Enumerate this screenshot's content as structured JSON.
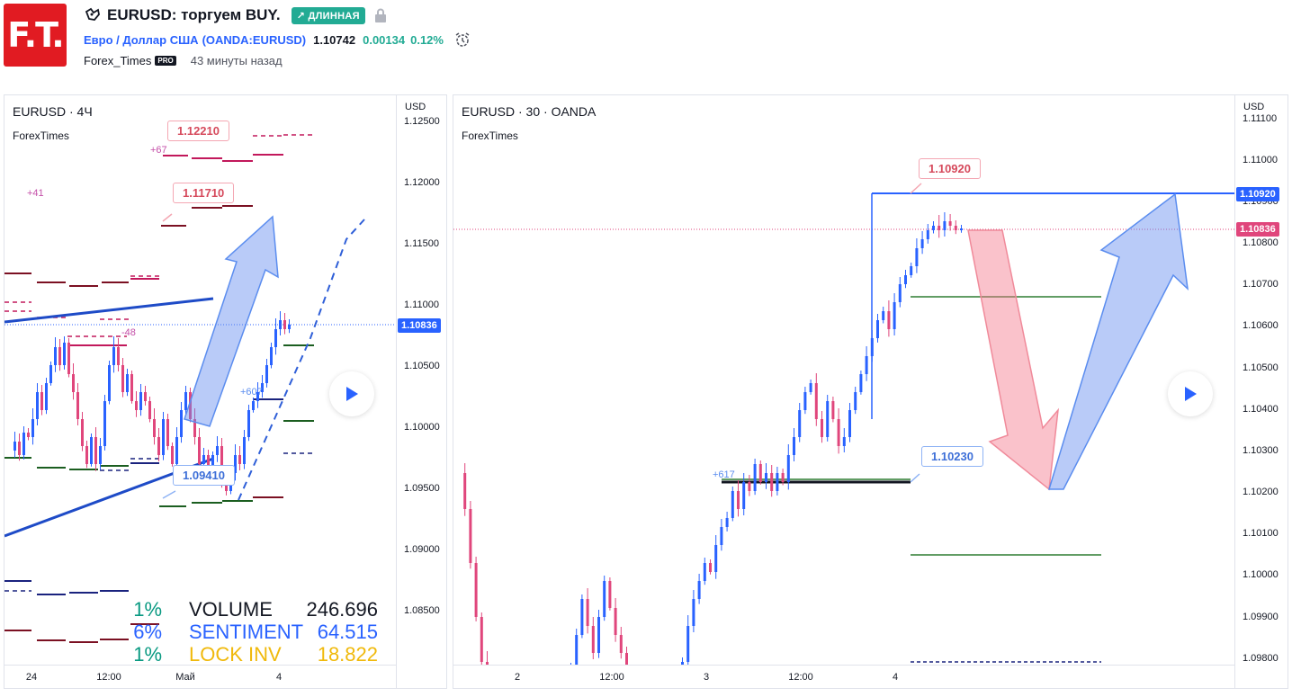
{
  "header": {
    "logo_text": "F.T.",
    "title": "EURUSD: торгуем BUY.",
    "badge": "↗ ДЛИННАЯ",
    "symbol_name": "Евро / Доллар США",
    "symbol_code": "(OANDA:EURUSD)",
    "price": "1.10742",
    "change": "0.00134",
    "change_pct": "0.12%",
    "author": "Forex_Times",
    "author_badge": "PRO",
    "time_ago": "43 минуты назад"
  },
  "left_chart": {
    "title": "EURUSD · 4Ч",
    "subtitle": "ForexTimes",
    "currency": "USD",
    "y_ticks": [
      "1.12500",
      "1.12000",
      "1.11500",
      "1.11000",
      "1.10500",
      "1.10000",
      "1.09500",
      "1.09000",
      "1.08500"
    ],
    "x_ticks": [
      "24",
      "12:00",
      "Май",
      "4"
    ],
    "current_price": "1.10836",
    "labels": {
      "upper": "1.12210",
      "mid": "1.11710",
      "lower": "1.09410"
    },
    "small_labels": {
      "plus67": "+67",
      "plus41": "+41",
      "minus48": "-48",
      "plus607": "+607"
    },
    "stats": [
      {
        "pct": "1%",
        "name": "VOLUME",
        "value": "246.696",
        "color": "#089981"
      },
      {
        "pct": "6%",
        "name": "SENTIMENT",
        "value": "64.515",
        "color": "#2962ff"
      },
      {
        "pct": "1%",
        "name": "LOCK INV",
        "value": "18.822",
        "color": "#f0b90b"
      }
    ]
  },
  "right_chart": {
    "title": "EURUSD · 30 · OANDA",
    "subtitle": "ForexTimes",
    "currency": "USD",
    "y_ticks": [
      "1.11100",
      "1.11000",
      "1.10900",
      "1.10800",
      "1.10700",
      "1.10600",
      "1.10500",
      "1.10400",
      "1.10300",
      "1.10200",
      "1.10100",
      "1.10000",
      "1.09900",
      "1.09800"
    ],
    "x_ticks": [
      "2",
      "12:00",
      "3",
      "12:00",
      "4"
    ],
    "price_tag_blue": "1.10920",
    "price_tag_red": "1.10836",
    "labels": {
      "upper": "1.10920",
      "lower": "1.10230"
    },
    "small_labels": {
      "plus617": "+617"
    }
  },
  "colors": {
    "up": "#2962ff",
    "down": "#e0467c",
    "accent_green": "#22ab94",
    "brand_red": "#e11b22"
  }
}
